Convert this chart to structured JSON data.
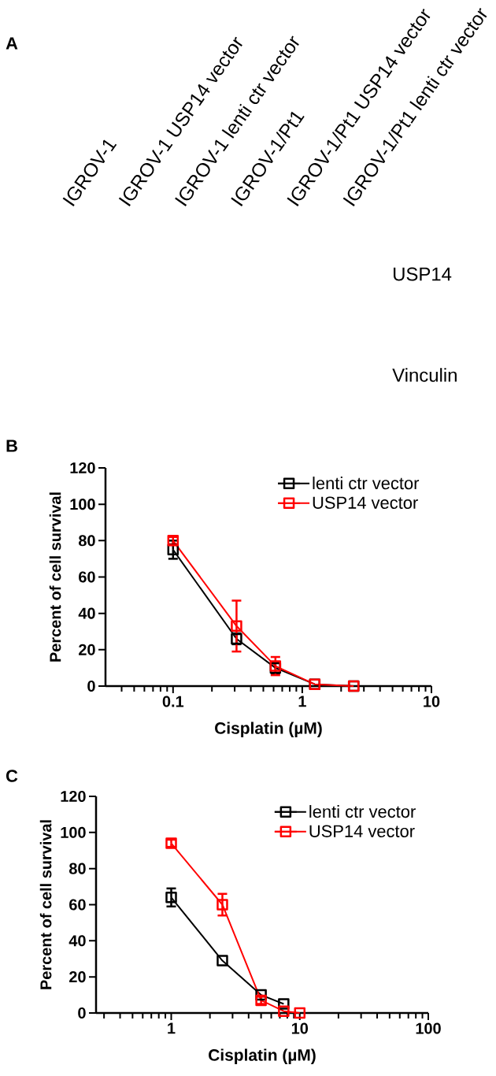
{
  "chart_data": [
    {
      "type": "other",
      "title": "A",
      "categories": [
        "IGROV-1",
        "IGROV-1 USP14 vector",
        "IGROV-1 lenti ctr vector",
        "IGROV-1/Pt1",
        "IGROV-1/Pt1 USP14 vector",
        "IGROV-1/Pt1 lenti ctr vector"
      ],
      "annotations": [
        "USP14",
        "Vinculin"
      ]
    },
    {
      "type": "line",
      "title": "B",
      "xlabel": "Cisplatin (µM)",
      "ylabel": "Percent of cell survival",
      "log": "x",
      "xlim": [
        0.03,
        10
      ],
      "ylim": [
        0,
        120
      ],
      "xticks": [
        {
          "value": 0.04,
          "label": null
        },
        {
          "value": 0.05,
          "label": null
        },
        {
          "value": 0.06,
          "label": null
        },
        {
          "value": 0.07,
          "label": null
        },
        {
          "value": 0.08,
          "label": null
        },
        {
          "value": 0.09,
          "label": null
        },
        0.1,
        {
          "value": 0.2,
          "label": null
        },
        {
          "value": 0.3,
          "label": null
        },
        {
          "value": 0.4,
          "label": null
        },
        {
          "value": 0.5,
          "label": null
        },
        {
          "value": 0.6,
          "label": null
        },
        {
          "value": 0.7,
          "label": null
        },
        {
          "value": 0.8,
          "label": null
        },
        {
          "value": 0.9,
          "label": null
        },
        1,
        {
          "value": 2,
          "label": null
        },
        {
          "value": 3,
          "label": null
        },
        {
          "value": 4,
          "label": null
        },
        {
          "value": 5,
          "label": null
        },
        {
          "value": 6,
          "label": null
        },
        {
          "value": 7,
          "label": null
        },
        {
          "value": 8,
          "label": null
        },
        {
          "value": 9,
          "label": null
        },
        10
      ],
      "yticks": [
        0,
        20,
        40,
        60,
        80,
        100,
        120
      ],
      "legend": "top right",
      "marker": "square",
      "line_style": "solid",
      "series": [
        {
          "name": "lenti ctr vector",
          "color": "#000000",
          "x": [
            0.1,
            0.31,
            0.62,
            1.25,
            2.5
          ],
          "values": [
            75,
            26,
            10,
            1,
            0
          ],
          "errors": [
            5,
            3,
            3,
            null,
            null
          ]
        },
        {
          "name": "USP14 vector",
          "color": "#ff0000",
          "x": [
            0.1,
            0.31,
            0.62,
            1.25,
            2.5
          ],
          "values": [
            80,
            33,
            11,
            1,
            0
          ],
          "errors": [
            2,
            14,
            5,
            null,
            null
          ]
        }
      ]
    },
    {
      "type": "line",
      "title": "C",
      "xlabel": "Cisplatin (µM)",
      "ylabel": "Percent of cell survival",
      "log": "x",
      "xlim": [
        0.26,
        100
      ],
      "ylim": [
        0,
        120
      ],
      "xticks": [
        {
          "value": 0.3,
          "label": null
        },
        {
          "value": 0.4,
          "label": null
        },
        {
          "value": 0.5,
          "label": null
        },
        {
          "value": 0.6,
          "label": null
        },
        {
          "value": 0.7,
          "label": null
        },
        {
          "value": 0.8,
          "label": null
        },
        {
          "value": 0.9,
          "label": null
        },
        1,
        {
          "value": 2,
          "label": null
        },
        {
          "value": 3,
          "label": null
        },
        {
          "value": 4,
          "label": null
        },
        {
          "value": 5,
          "label": null
        },
        {
          "value": 6,
          "label": null
        },
        {
          "value": 7,
          "label": null
        },
        {
          "value": 8,
          "label": null
        },
        {
          "value": 9,
          "label": null
        },
        10,
        {
          "value": 20,
          "label": null
        },
        {
          "value": 30,
          "label": null
        },
        {
          "value": 40,
          "label": null
        },
        {
          "value": 50,
          "label": null
        },
        {
          "value": 60,
          "label": null
        },
        {
          "value": 70,
          "label": null
        },
        {
          "value": 80,
          "label": null
        },
        {
          "value": 90,
          "label": null
        },
        100
      ],
      "yticks": [
        0,
        20,
        40,
        60,
        80,
        100,
        120
      ],
      "legend": "top right",
      "marker": "square",
      "line_style": "solid",
      "series": [
        {
          "name": "lenti ctr vector",
          "color": "#000000",
          "x": [
            1,
            2.5,
            5,
            7.5
          ],
          "values": [
            64,
            29,
            10,
            5
          ],
          "errors": [
            5,
            null,
            null,
            null
          ]
        },
        {
          "name": "USP14 vector",
          "color": "#ff0000",
          "x": [
            1,
            2.5,
            5,
            7.5,
            10
          ],
          "values": [
            94,
            60,
            7,
            1,
            0
          ],
          "errors": [
            2,
            6,
            2,
            null,
            null
          ]
        }
      ]
    }
  ]
}
